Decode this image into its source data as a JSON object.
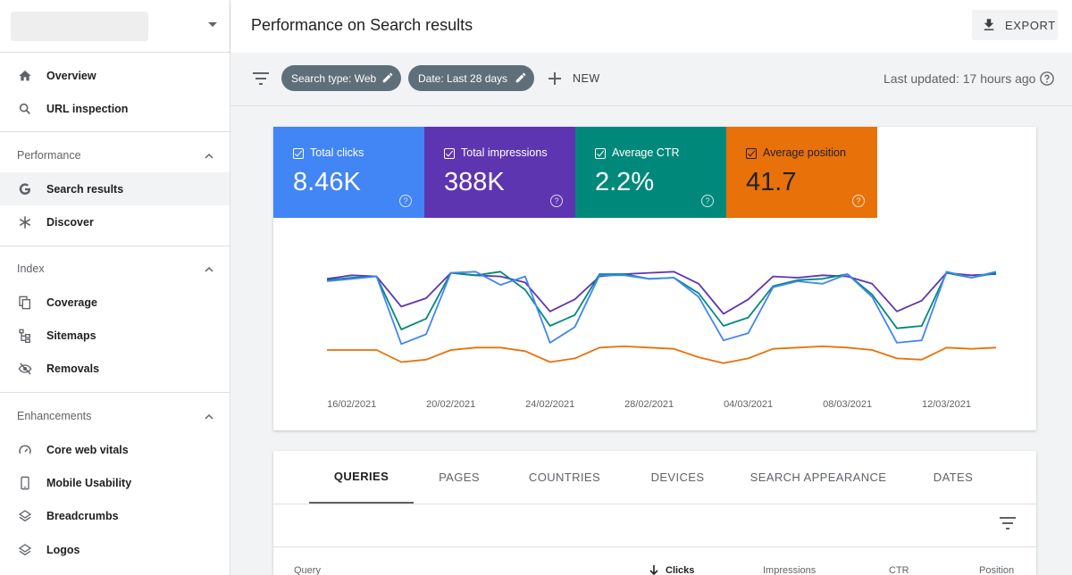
{
  "header": {
    "title": "Performance on Search results",
    "export_label": "EXPORT"
  },
  "sidebar": {
    "top_items": [
      {
        "label": "Overview",
        "icon": "home-icon"
      },
      {
        "label": "URL inspection",
        "icon": "search-icon"
      }
    ],
    "sections": [
      {
        "label": "Performance",
        "items": [
          {
            "label": "Search results",
            "icon": "google-g-icon",
            "active": true
          },
          {
            "label": "Discover",
            "icon": "asterisk-icon"
          }
        ]
      },
      {
        "label": "Index",
        "items": [
          {
            "label": "Coverage",
            "icon": "file-copy-icon"
          },
          {
            "label": "Sitemaps",
            "icon": "sitemap-icon"
          },
          {
            "label": "Removals",
            "icon": "eye-off-icon"
          }
        ]
      },
      {
        "label": "Enhancements",
        "items": [
          {
            "label": "Core web vitals",
            "icon": "speedometer-icon"
          },
          {
            "label": "Mobile Usability",
            "icon": "smartphone-icon"
          },
          {
            "label": "Breadcrumbs",
            "icon": "layers-icon"
          },
          {
            "label": "Logos",
            "icon": "layers-icon"
          }
        ]
      }
    ]
  },
  "filters": {
    "chips": [
      "Search type: Web",
      "Date: Last 28 days"
    ],
    "new_label": "NEW",
    "last_updated": "Last updated: 17 hours ago"
  },
  "metrics": [
    {
      "label": "Total clicks",
      "value": "8.46K",
      "color": "#4285f4"
    },
    {
      "label": "Total impressions",
      "value": "388K",
      "color": "#5e35b1"
    },
    {
      "label": "Average CTR",
      "value": "2.2%",
      "color": "#00897b"
    },
    {
      "label": "Average position",
      "value": "41.7",
      "color": "#e8710a"
    }
  ],
  "chart_data": {
    "type": "line",
    "x": [
      "15/02/2021",
      "16/02/2021",
      "17/02/2021",
      "18/02/2021",
      "19/02/2021",
      "20/02/2021",
      "21/02/2021",
      "22/02/2021",
      "23/02/2021",
      "24/02/2021",
      "25/02/2021",
      "26/02/2021",
      "27/02/2021",
      "28/02/2021",
      "01/03/2021",
      "02/03/2021",
      "03/03/2021",
      "04/03/2021",
      "05/03/2021",
      "06/03/2021",
      "07/03/2021",
      "08/03/2021",
      "09/03/2021",
      "10/03/2021",
      "11/03/2021",
      "12/03/2021",
      "13/03/2021",
      "14/03/2021"
    ],
    "xticks": [
      "16/02/2021",
      "20/02/2021",
      "24/02/2021",
      "28/02/2021",
      "04/03/2021",
      "08/03/2021",
      "12/03/2021"
    ],
    "series": [
      {
        "color": "#5e35b1",
        "values": [
          0.79,
          0.82,
          0.81,
          0.56,
          0.63,
          0.84,
          0.82,
          0.81,
          0.76,
          0.52,
          0.62,
          0.81,
          0.83,
          0.84,
          0.85,
          0.75,
          0.5,
          0.62,
          0.81,
          0.8,
          0.82,
          0.81,
          0.75,
          0.52,
          0.61,
          0.84,
          0.82,
          0.83
        ]
      },
      {
        "color": "#00897b",
        "values": [
          0.78,
          0.8,
          0.81,
          0.37,
          0.46,
          0.84,
          0.82,
          0.85,
          0.7,
          0.4,
          0.49,
          0.83,
          0.83,
          0.79,
          0.8,
          0.67,
          0.4,
          0.47,
          0.73,
          0.78,
          0.79,
          0.83,
          0.66,
          0.38,
          0.4,
          0.84,
          0.8,
          0.84
        ]
      },
      {
        "color": "#4285f4",
        "values": [
          0.77,
          0.79,
          0.81,
          0.25,
          0.33,
          0.84,
          0.85,
          0.74,
          0.81,
          0.26,
          0.39,
          0.82,
          0.82,
          0.79,
          0.8,
          0.64,
          0.28,
          0.34,
          0.72,
          0.77,
          0.75,
          0.83,
          0.64,
          0.26,
          0.28,
          0.85,
          0.8,
          0.85
        ]
      },
      {
        "color": "#e8710a",
        "values": [
          0.2,
          0.2,
          0.2,
          0.1,
          0.12,
          0.2,
          0.22,
          0.22,
          0.19,
          0.1,
          0.13,
          0.22,
          0.23,
          0.22,
          0.21,
          0.14,
          0.09,
          0.13,
          0.21,
          0.22,
          0.23,
          0.22,
          0.2,
          0.13,
          0.12,
          0.22,
          0.21,
          0.22
        ]
      }
    ]
  },
  "table": {
    "tabs": [
      "QUERIES",
      "PAGES",
      "COUNTRIES",
      "DEVICES",
      "SEARCH APPEARANCE",
      "DATES"
    ],
    "active_tab": 0,
    "columns": [
      "Query",
      "Clicks",
      "Impressions",
      "CTR",
      "Position"
    ]
  }
}
